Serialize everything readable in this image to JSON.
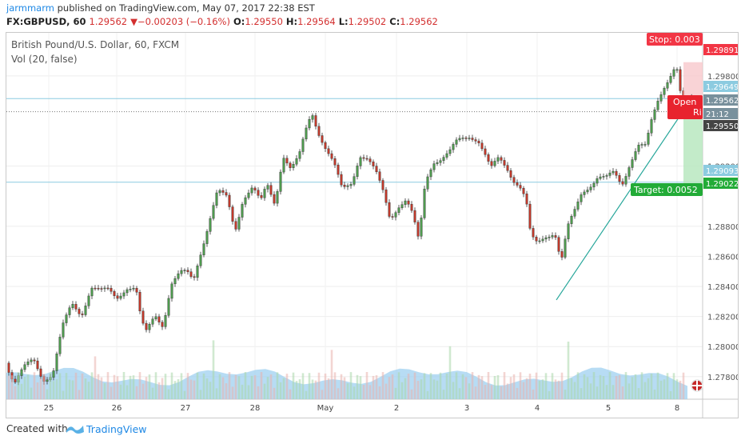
{
  "header": {
    "author": "jarmmarm",
    "published_text": "published on TradingView.com, May 07, 2017 22:38 EST",
    "symbol": "FX:GBPUSD, 60",
    "last_price": "1.29562",
    "change_arrow": "▼",
    "change": "−0.00203 (−0.16%)",
    "open_label": "O:",
    "open": "1.29550",
    "high_label": "H:",
    "high": "1.29564",
    "low_label": "L:",
    "low": "1.29502",
    "close_label": "C:",
    "close": "1.29562"
  },
  "legend": {
    "instrument": "British Pound/U.S. Dollar, 60, FXCM",
    "volume": "Vol (20, false)"
  },
  "position_tool": {
    "stop_label": "Stop: 0.003",
    "target_label": "Target: 0.0052",
    "open_label": "Open",
    "risk_label": "Ri",
    "stop_color": "#f23645",
    "target_color": "#22ab37"
  },
  "price_tags": [
    {
      "label": "1.29891",
      "color": "#f23645"
    },
    {
      "label": "1.29649",
      "color": "#8ccbe0"
    },
    {
      "label": "1.29562",
      "color": "#78909c"
    },
    {
      "label": "21:12",
      "color": "#78909c"
    },
    {
      "label": "1.29550",
      "color": "#444444"
    },
    {
      "label": "1.29093",
      "color": "#8ccbe0"
    },
    {
      "label": "1.29022",
      "color": "#22ab37"
    }
  ],
  "footer": {
    "created_with": "Created with",
    "brand": "TradingView"
  },
  "chart_data": {
    "type": "candlestick",
    "title": "British Pound/U.S. Dollar, 60, FXCM",
    "x_tick_labels": [
      "25",
      "26",
      "27",
      "28",
      "May",
      "2",
      "3",
      "4",
      "5",
      "8"
    ],
    "y_tick_labels": [
      "1.29800",
      "1.29200",
      "1.28800",
      "1.28600",
      "1.28400",
      "1.28200",
      "1.28000",
      "1.27800"
    ],
    "ylim": [
      1.2765,
      1.2998
    ],
    "horizontal_levels": [
      1.29649,
      1.29093
    ],
    "trendline": {
      "from": [
        "May 4",
        1.2831
      ],
      "to": [
        "May 8",
        1.2964
      ]
    },
    "close_path": [
      [
        0,
        1.2789
      ],
      [
        10,
        1.2776
      ],
      [
        22,
        1.2785
      ],
      [
        34,
        1.2791
      ],
      [
        46,
        1.2779
      ],
      [
        58,
        1.2782
      ],
      [
        70,
        1.2812
      ],
      [
        82,
        1.2828
      ],
      [
        94,
        1.2822
      ],
      [
        106,
        1.284
      ],
      [
        118,
        1.2836
      ],
      [
        128,
        1.2837
      ],
      [
        138,
        1.2833
      ],
      [
        150,
        1.284
      ],
      [
        162,
        1.2838
      ],
      [
        168,
        1.2818
      ],
      [
        174,
        1.2808
      ],
      [
        186,
        1.2822
      ],
      [
        196,
        1.2815
      ],
      [
        206,
        1.2841
      ],
      [
        218,
        1.2848
      ],
      [
        226,
        1.2849
      ],
      [
        234,
        1.2845
      ],
      [
        240,
        1.2858
      ],
      [
        250,
        1.2876
      ],
      [
        264,
        1.2902
      ],
      [
        276,
        1.2899
      ],
      [
        286,
        1.2878
      ],
      [
        296,
        1.2899
      ],
      [
        308,
        1.2905
      ],
      [
        318,
        1.2895
      ],
      [
        326,
        1.2908
      ],
      [
        336,
        1.2896
      ],
      [
        346,
        1.2928
      ],
      [
        356,
        1.2917
      ],
      [
        366,
        1.2925
      ],
      [
        374,
        1.2943
      ],
      [
        382,
        1.2957
      ],
      [
        390,
        1.2944
      ],
      [
        400,
        1.2931
      ],
      [
        410,
        1.292
      ],
      [
        420,
        1.2904
      ],
      [
        432,
        1.291
      ],
      [
        442,
        1.2928
      ],
      [
        452,
        1.2924
      ],
      [
        462,
        1.2915
      ],
      [
        472,
        1.2902
      ],
      [
        480,
        1.2886
      ],
      [
        490,
        1.2894
      ],
      [
        500,
        1.2897
      ],
      [
        508,
        1.2887
      ],
      [
        516,
        1.2869
      ],
      [
        524,
        1.291
      ],
      [
        534,
        1.2924
      ],
      [
        544,
        1.2925
      ],
      [
        554,
        1.2928
      ],
      [
        564,
        1.2936
      ],
      [
        572,
        1.2939
      ],
      [
        580,
        1.2941
      ],
      [
        590,
        1.2938
      ],
      [
        598,
        1.2928
      ],
      [
        606,
        1.2917
      ],
      [
        616,
        1.2925
      ],
      [
        626,
        1.292
      ],
      [
        634,
        1.2912
      ],
      [
        642,
        1.2907
      ],
      [
        650,
        1.2897
      ],
      [
        656,
        1.2872
      ],
      [
        664,
        1.2868
      ],
      [
        674,
        1.2874
      ],
      [
        686,
        1.2877
      ],
      [
        694,
        1.2856
      ],
      [
        702,
        1.2878
      ],
      [
        710,
        1.2888
      ],
      [
        720,
        1.2903
      ],
      [
        730,
        1.2908
      ],
      [
        740,
        1.2913
      ],
      [
        750,
        1.2911
      ],
      [
        760,
        1.2915
      ],
      [
        770,
        1.2908
      ],
      [
        780,
        1.2923
      ],
      [
        790,
        1.2934
      ],
      [
        800,
        1.2932
      ],
      [
        806,
        1.2947
      ],
      [
        814,
        1.2962
      ],
      [
        822,
        1.2973
      ],
      [
        830,
        1.2981
      ],
      [
        838,
        1.2988
      ],
      [
        844,
        1.2965
      ],
      [
        850,
        1.2956
      ]
    ]
  }
}
